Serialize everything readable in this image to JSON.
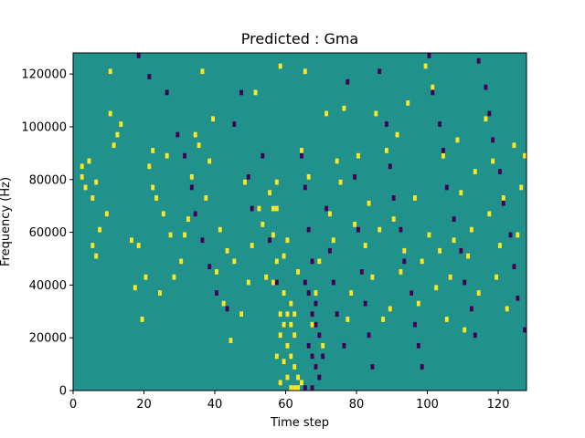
{
  "chart_data": {
    "type": "heatmap",
    "title": "Predicted : Gma",
    "xlabel": "Time step",
    "ylabel": "Frequency (Hz)",
    "xlim": [
      0,
      128
    ],
    "ylim": [
      0,
      128000
    ],
    "xticks": [
      0,
      20,
      40,
      60,
      80,
      100,
      120
    ],
    "xtick_labels": [
      "0",
      "20",
      "40",
      "60",
      "80",
      "100",
      "120"
    ],
    "yticks": [
      0,
      20000,
      40000,
      60000,
      80000,
      100000,
      120000
    ],
    "ytick_labels": [
      "0",
      "20000",
      "40000",
      "60000",
      "80000",
      "100000",
      "120000"
    ],
    "grid": false,
    "colormap": "viridis",
    "colors": {
      "background": "#21918c",
      "high": "#fde725",
      "low": "#440154"
    },
    "n_time_steps": 128,
    "n_freq_bins": 64,
    "bin_hz": 2000,
    "cells": [
      [
        2,
        42,
        1
      ],
      [
        2,
        40,
        1
      ],
      [
        3,
        38,
        1
      ],
      [
        4,
        43,
        1
      ],
      [
        5,
        36,
        1
      ],
      [
        6,
        39,
        1
      ],
      [
        5,
        27,
        1
      ],
      [
        6,
        25,
        1
      ],
      [
        7,
        30,
        1
      ],
      [
        9,
        33,
        1
      ],
      [
        10,
        52,
        1
      ],
      [
        10,
        60,
        1
      ],
      [
        11,
        46,
        1
      ],
      [
        12,
        48,
        1
      ],
      [
        13,
        50,
        1
      ],
      [
        16,
        28,
        1
      ],
      [
        17,
        19,
        1
      ],
      [
        18,
        27,
        1
      ],
      [
        19,
        13,
        1
      ],
      [
        20,
        21,
        1
      ],
      [
        21,
        42,
        1
      ],
      [
        22,
        38,
        1
      ],
      [
        22,
        45,
        1
      ],
      [
        23,
        36,
        1
      ],
      [
        24,
        18,
        1
      ],
      [
        25,
        33,
        1
      ],
      [
        26,
        44,
        1
      ],
      [
        27,
        29,
        1
      ],
      [
        28,
        21,
        1
      ],
      [
        30,
        24,
        1
      ],
      [
        31,
        29,
        1
      ],
      [
        32,
        32,
        1
      ],
      [
        33,
        40,
        1
      ],
      [
        34,
        48,
        1
      ],
      [
        35,
        46,
        1
      ],
      [
        36,
        60,
        1
      ],
      [
        37,
        36,
        1
      ],
      [
        38,
        43,
        1
      ],
      [
        39,
        51,
        1
      ],
      [
        40,
        22,
        1
      ],
      [
        41,
        30,
        1
      ],
      [
        42,
        16,
        1
      ],
      [
        43,
        26,
        1
      ],
      [
        44,
        9,
        1
      ],
      [
        45,
        24,
        1
      ],
      [
        47,
        14,
        1
      ],
      [
        48,
        39,
        1
      ],
      [
        49,
        20,
        1
      ],
      [
        50,
        27,
        1
      ],
      [
        51,
        56,
        1
      ],
      [
        52,
        34,
        1
      ],
      [
        53,
        31,
        1
      ],
      [
        54,
        21,
        1
      ],
      [
        55,
        37,
        1
      ],
      [
        56,
        29,
        1
      ],
      [
        57,
        39,
        1
      ],
      [
        58,
        61,
        1
      ],
      [
        59,
        25,
        1
      ],
      [
        62,
        14,
        1
      ],
      [
        63,
        22,
        1
      ],
      [
        64,
        45,
        1
      ],
      [
        65,
        60,
        1
      ],
      [
        66,
        40,
        1
      ],
      [
        67,
        12,
        1
      ],
      [
        68,
        18,
        1
      ],
      [
        69,
        24,
        1
      ],
      [
        70,
        8,
        1
      ],
      [
        71,
        52,
        1
      ],
      [
        72,
        33,
        1
      ],
      [
        73,
        28,
        1
      ],
      [
        74,
        43,
        1
      ],
      [
        75,
        39,
        1
      ],
      [
        76,
        53,
        1
      ],
      [
        77,
        13,
        1
      ],
      [
        78,
        18,
        1
      ],
      [
        79,
        31,
        1
      ],
      [
        80,
        44,
        1
      ],
      [
        82,
        27,
        1
      ],
      [
        83,
        35,
        1
      ],
      [
        84,
        21,
        1
      ],
      [
        85,
        52,
        1
      ],
      [
        86,
        30,
        1
      ],
      [
        87,
        13,
        1
      ],
      [
        88,
        45,
        1
      ],
      [
        89,
        15,
        1
      ],
      [
        90,
        32,
        1
      ],
      [
        91,
        48,
        1
      ],
      [
        92,
        22,
        1
      ],
      [
        93,
        26,
        1
      ],
      [
        94,
        54,
        1
      ],
      [
        95,
        18,
        1
      ],
      [
        96,
        36,
        1
      ],
      [
        97,
        16,
        1
      ],
      [
        98,
        24,
        1
      ],
      [
        99,
        61,
        1
      ],
      [
        100,
        29,
        1
      ],
      [
        101,
        57,
        1
      ],
      [
        102,
        19,
        1
      ],
      [
        103,
        26,
        1
      ],
      [
        104,
        44,
        1
      ],
      [
        105,
        13,
        1
      ],
      [
        106,
        21,
        1
      ],
      [
        107,
        28,
        1
      ],
      [
        108,
        47,
        1
      ],
      [
        109,
        37,
        1
      ],
      [
        110,
        11,
        1
      ],
      [
        111,
        25,
        1
      ],
      [
        112,
        30,
        1
      ],
      [
        113,
        41,
        1
      ],
      [
        114,
        18,
        1
      ],
      [
        116,
        51,
        1
      ],
      [
        117,
        33,
        1
      ],
      [
        118,
        43,
        1
      ],
      [
        119,
        21,
        1
      ],
      [
        120,
        27,
        1
      ],
      [
        121,
        36,
        1
      ],
      [
        122,
        15,
        1
      ],
      [
        124,
        46,
        1
      ],
      [
        125,
        29,
        1
      ],
      [
        126,
        38,
        1
      ],
      [
        127,
        44,
        1
      ],
      [
        56,
        20,
        1
      ],
      [
        57,
        24,
        1
      ],
      [
        58,
        10,
        1
      ],
      [
        59,
        18,
        1
      ],
      [
        60,
        28,
        1
      ],
      [
        61,
        16,
        1
      ],
      [
        62,
        10,
        1
      ],
      [
        60,
        8,
        1
      ],
      [
        58,
        14,
        1
      ],
      [
        57,
        6,
        1
      ],
      [
        61,
        6,
        1
      ],
      [
        59,
        5,
        1
      ],
      [
        62,
        4,
        1
      ],
      [
        60,
        2,
        1
      ],
      [
        58,
        1,
        1
      ],
      [
        63,
        2,
        1
      ],
      [
        64,
        1,
        1
      ],
      [
        61,
        0,
        1
      ],
      [
        63,
        0,
        1
      ],
      [
        62,
        0,
        1
      ],
      [
        57,
        34,
        1
      ],
      [
        56,
        34,
        1
      ],
      [
        61,
        12,
        1
      ],
      [
        60,
        14,
        1
      ],
      [
        59,
        12,
        1
      ],
      [
        18,
        63,
        2
      ],
      [
        21,
        59,
        2
      ],
      [
        26,
        56,
        2
      ],
      [
        29,
        48,
        2
      ],
      [
        31,
        44,
        2
      ],
      [
        33,
        38,
        2
      ],
      [
        34,
        33,
        2
      ],
      [
        36,
        28,
        2
      ],
      [
        38,
        23,
        2
      ],
      [
        40,
        18,
        2
      ],
      [
        43,
        15,
        2
      ],
      [
        45,
        50,
        2
      ],
      [
        47,
        56,
        2
      ],
      [
        49,
        40,
        2
      ],
      [
        50,
        34,
        2
      ],
      [
        53,
        44,
        2
      ],
      [
        55,
        28,
        2
      ],
      [
        57,
        20,
        2
      ],
      [
        64,
        44,
        2
      ],
      [
        65,
        38,
        2
      ],
      [
        66,
        30,
        2
      ],
      [
        67,
        24,
        2
      ],
      [
        68,
        16,
        2
      ],
      [
        69,
        10,
        2
      ],
      [
        70,
        6,
        2
      ],
      [
        71,
        34,
        2
      ],
      [
        72,
        26,
        2
      ],
      [
        73,
        20,
        2
      ],
      [
        74,
        14,
        2
      ],
      [
        76,
        8,
        2
      ],
      [
        77,
        58,
        2
      ],
      [
        79,
        40,
        2
      ],
      [
        80,
        30,
        2
      ],
      [
        81,
        22,
        2
      ],
      [
        82,
        16,
        2
      ],
      [
        83,
        10,
        2
      ],
      [
        84,
        4,
        2
      ],
      [
        86,
        60,
        2
      ],
      [
        88,
        50,
        2
      ],
      [
        89,
        42,
        2
      ],
      [
        90,
        36,
        2
      ],
      [
        92,
        30,
        2
      ],
      [
        93,
        24,
        2
      ],
      [
        95,
        18,
        2
      ],
      [
        96,
        12,
        2
      ],
      [
        97,
        8,
        2
      ],
      [
        98,
        4,
        2
      ],
      [
        100,
        63,
        2
      ],
      [
        101,
        56,
        2
      ],
      [
        103,
        50,
        2
      ],
      [
        104,
        45,
        2
      ],
      [
        105,
        38,
        2
      ],
      [
        107,
        32,
        2
      ],
      [
        109,
        26,
        2
      ],
      [
        110,
        20,
        2
      ],
      [
        112,
        15,
        2
      ],
      [
        113,
        10,
        2
      ],
      [
        114,
        62,
        2
      ],
      [
        116,
        57,
        2
      ],
      [
        117,
        52,
        2
      ],
      [
        118,
        47,
        2
      ],
      [
        120,
        41,
        2
      ],
      [
        121,
        35,
        2
      ],
      [
        123,
        29,
        2
      ],
      [
        124,
        23,
        2
      ],
      [
        125,
        17,
        2
      ],
      [
        127,
        11,
        2
      ],
      [
        65,
        20,
        2
      ],
      [
        66,
        18,
        2
      ],
      [
        67,
        14,
        2
      ],
      [
        68,
        12,
        2
      ],
      [
        66,
        8,
        2
      ],
      [
        67,
        6,
        2
      ],
      [
        68,
        4,
        2
      ],
      [
        69,
        2,
        2
      ],
      [
        65,
        0,
        2
      ],
      [
        67,
        0,
        2
      ]
    ]
  }
}
